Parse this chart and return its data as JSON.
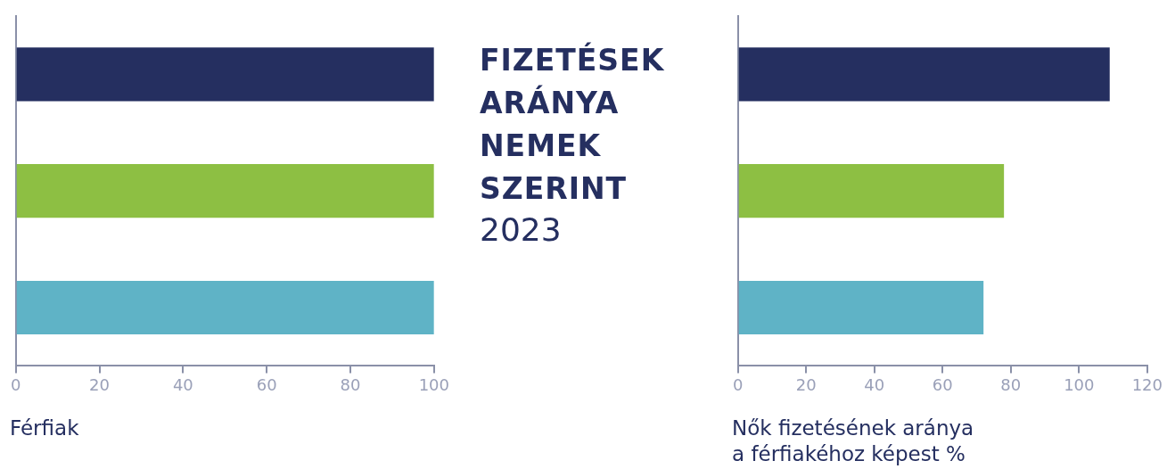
{
  "chart_data": [
    {
      "type": "bar",
      "orientation": "horizontal",
      "xlabel": "Férfiak",
      "categories": [
        null,
        null,
        null
      ],
      "values": [
        100,
        100,
        100
      ],
      "colors": [
        "#252f60",
        "#8dbf43",
        "#5fb3c6"
      ],
      "xlim": [
        0,
        100
      ],
      "xticks": [
        0,
        20,
        40,
        60,
        80,
        100
      ],
      "grid": false,
      "tick_labels": "x"
    },
    {
      "type": "other",
      "title": "FIZETÉSEK ARÁNYA NEMEK SZERINT",
      "subtitle": "2023"
    },
    {
      "type": "bar",
      "orientation": "horizontal",
      "xlabel": "Nők fizetésének aránya\na férfiakéhoz képest %",
      "categories": [
        null,
        null,
        null
      ],
      "values": [
        109,
        78,
        72
      ],
      "colors": [
        "#252f60",
        "#8dbf43",
        "#5fb3c6"
      ],
      "xlim": [
        0,
        120
      ],
      "xticks": [
        0,
        20,
        40,
        60,
        80,
        100,
        120
      ],
      "grid": false,
      "tick_labels": "x"
    }
  ]
}
